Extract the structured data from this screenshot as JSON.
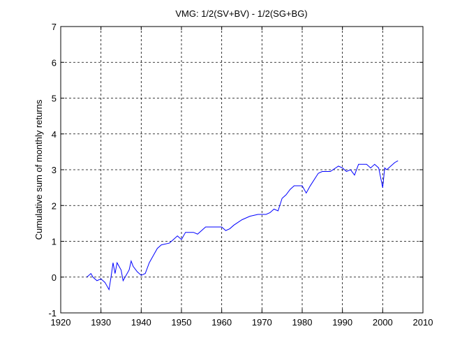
{
  "chart_data": {
    "type": "line",
    "title": "VMG: 1/2(SV+BV) - 1/2(SG+BG)",
    "y_label": "Cumulative sum of monthly returns",
    "x": [
      1926.5,
      1927.5,
      1928,
      1929,
      1930,
      1931,
      1932,
      1932.5,
      1933,
      1933.5,
      1934,
      1935,
      1935.5,
      1936,
      1937,
      1937.5,
      1938,
      1939,
      1940,
      1941,
      1942,
      1943,
      1944,
      1945,
      1947,
      1948,
      1949,
      1950,
      1951,
      1953,
      1954,
      1956,
      1958,
      1960,
      1961,
      1962,
      1963,
      1965,
      1967,
      1969,
      1971,
      1972,
      1973,
      1974,
      1975,
      1976,
      1977,
      1978,
      1980,
      1981,
      1982,
      1984,
      1985,
      1987,
      1989,
      1990,
      1991,
      1992,
      1993,
      1994,
      1996,
      1997,
      1998,
      1999,
      2000,
      2000.5,
      2001,
      2002,
      2003,
      2003.8
    ],
    "series": [
      {
        "name": "VMG",
        "color": "#0000ff",
        "values": [
          0,
          0.1,
          0,
          -0.1,
          -0.05,
          -0.15,
          -0.35,
          0.0,
          0.4,
          0.1,
          0.4,
          0.2,
          -0.1,
          0.0,
          0.2,
          0.45,
          0.3,
          0.15,
          0.05,
          0.1,
          0.4,
          0.6,
          0.8,
          0.9,
          0.95,
          1.05,
          1.15,
          1.05,
          1.25,
          1.25,
          1.2,
          1.4,
          1.4,
          1.4,
          1.3,
          1.35,
          1.45,
          1.6,
          1.7,
          1.75,
          1.75,
          1.8,
          1.9,
          1.85,
          2.2,
          2.3,
          2.45,
          2.55,
          2.55,
          2.35,
          2.55,
          2.9,
          2.95,
          2.95,
          3.1,
          3.05,
          2.95,
          3.0,
          2.85,
          3.15,
          3.15,
          3.05,
          3.15,
          3.05,
          2.5,
          3.05,
          3.0,
          3.1,
          3.2,
          3.25
        ]
      }
    ],
    "xlim": [
      1920,
      2010
    ],
    "xticks": [
      1920,
      1930,
      1940,
      1950,
      1960,
      1970,
      1980,
      1990,
      2000,
      2010
    ],
    "ylim": [
      -1,
      7
    ],
    "yticks": [
      -1,
      0,
      1,
      2,
      3,
      4,
      5,
      6,
      7
    ],
    "grid": true
  }
}
